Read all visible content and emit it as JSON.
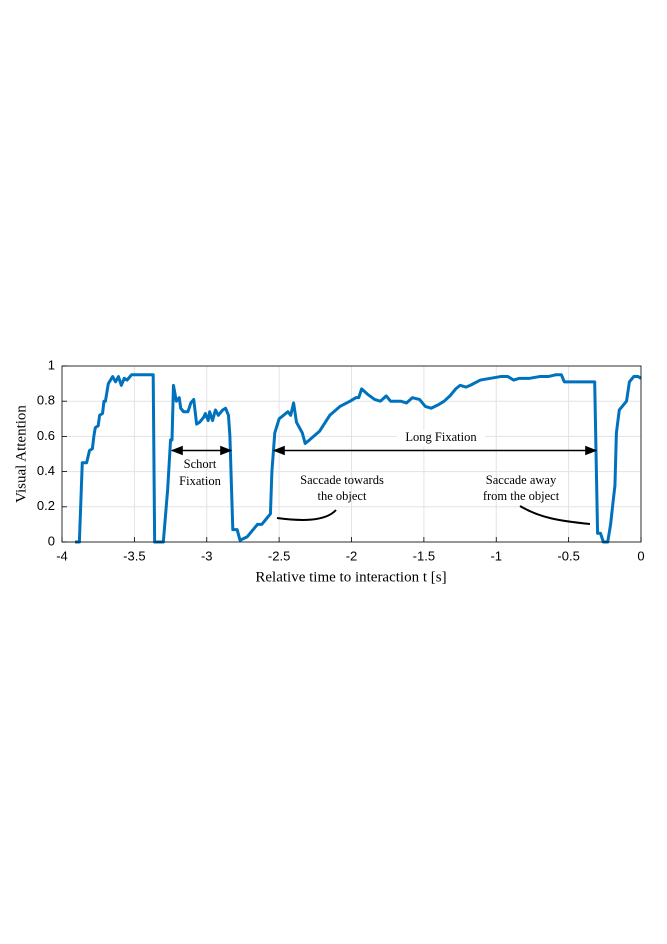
{
  "chart_data": {
    "type": "line",
    "xlabel": "Relative time to interaction t [s]",
    "ylabel": "Visual Attention",
    "xlim": [
      -4,
      0
    ],
    "xticks": [
      -4,
      -3.5,
      -3,
      -2.5,
      -2,
      -1.5,
      -1,
      -0.5,
      0
    ],
    "ylim": [
      0,
      1
    ],
    "yticks": [
      0,
      0.2,
      0.4,
      0.6,
      0.8,
      1
    ],
    "grid": true,
    "x": [
      -3.91,
      -3.88,
      -3.86,
      -3.83,
      -3.81,
      -3.79,
      -3.78,
      -3.77,
      -3.75,
      -3.74,
      -3.72,
      -3.71,
      -3.7,
      -3.68,
      -3.65,
      -3.63,
      -3.61,
      -3.59,
      -3.57,
      -3.55,
      -3.52,
      -3.37,
      -3.36,
      -3.3,
      -3.27,
      -3.25,
      -3.24,
      -3.23,
      -3.21,
      -3.19,
      -3.18,
      -3.16,
      -3.13,
      -3.11,
      -3.09,
      -3.07,
      -3.05,
      -3.02,
      -3.01,
      -2.99,
      -2.98,
      -2.96,
      -2.94,
      -2.92,
      -2.89,
      -2.87,
      -2.85,
      -2.84,
      -2.82,
      -2.79,
      -2.77,
      -2.72,
      -2.69,
      -2.65,
      -2.62,
      -2.59,
      -2.56,
      -2.55,
      -2.53,
      -2.5,
      -2.47,
      -2.44,
      -2.42,
      -2.4,
      -2.38,
      -2.34,
      -2.32,
      -2.29,
      -2.22,
      -2.15,
      -2.08,
      -2.01,
      -1.97,
      -1.95,
      -1.93,
      -1.89,
      -1.84,
      -1.8,
      -1.76,
      -1.73,
      -1.66,
      -1.62,
      -1.58,
      -1.53,
      -1.49,
      -1.45,
      -1.4,
      -1.36,
      -1.32,
      -1.28,
      -1.25,
      -1.21,
      -1.18,
      -1.11,
      -1.04,
      -0.97,
      -0.92,
      -0.88,
      -0.84,
      -0.77,
      -0.7,
      -0.64,
      -0.59,
      -0.55,
      -0.53,
      -0.32,
      -0.3,
      -0.28,
      -0.26,
      -0.23,
      -0.21,
      -0.19,
      -0.18,
      -0.17,
      -0.15,
      -0.12,
      -0.1,
      -0.08,
      -0.05,
      -0.02,
      0
    ],
    "series": [
      {
        "name": "Visual Attention",
        "color": "#0072bd",
        "values": [
          0,
          0,
          0.45,
          0.45,
          0.52,
          0.53,
          0.6,
          0.65,
          0.66,
          0.72,
          0.73,
          0.8,
          0.8,
          0.9,
          0.94,
          0.91,
          0.94,
          0.89,
          0.93,
          0.92,
          0.95,
          0.95,
          0,
          0,
          0.3,
          0.58,
          0.58,
          0.89,
          0.8,
          0.82,
          0.76,
          0.74,
          0.74,
          0.79,
          0.81,
          0.67,
          0.68,
          0.71,
          0.73,
          0.69,
          0.74,
          0.69,
          0.75,
          0.72,
          0.75,
          0.76,
          0.72,
          0.6,
          0.07,
          0.07,
          0.01,
          0.03,
          0.06,
          0.1,
          0.1,
          0.13,
          0.16,
          0.4,
          0.62,
          0.7,
          0.72,
          0.74,
          0.72,
          0.79,
          0.68,
          0.62,
          0.56,
          0.58,
          0.63,
          0.72,
          0.77,
          0.8,
          0.82,
          0.82,
          0.87,
          0.84,
          0.81,
          0.8,
          0.83,
          0.8,
          0.8,
          0.79,
          0.82,
          0.81,
          0.77,
          0.76,
          0.78,
          0.8,
          0.83,
          0.87,
          0.89,
          0.88,
          0.89,
          0.92,
          0.93,
          0.94,
          0.94,
          0.92,
          0.93,
          0.93,
          0.94,
          0.94,
          0.95,
          0.95,
          0.91,
          0.91,
          0.05,
          0.05,
          0,
          0,
          0.1,
          0.25,
          0.32,
          0.62,
          0.75,
          0.78,
          0.8,
          0.91,
          0.94,
          0.94,
          0.93
        ]
      }
    ],
    "annotations": [
      {
        "lines": [
          "Schort",
          "Fixation"
        ]
      },
      {
        "lines": [
          "Long Fixation"
        ]
      },
      {
        "lines": [
          "Saccade towards",
          "the object"
        ]
      },
      {
        "lines": [
          "Saccade away",
          "from the object"
        ]
      }
    ]
  }
}
